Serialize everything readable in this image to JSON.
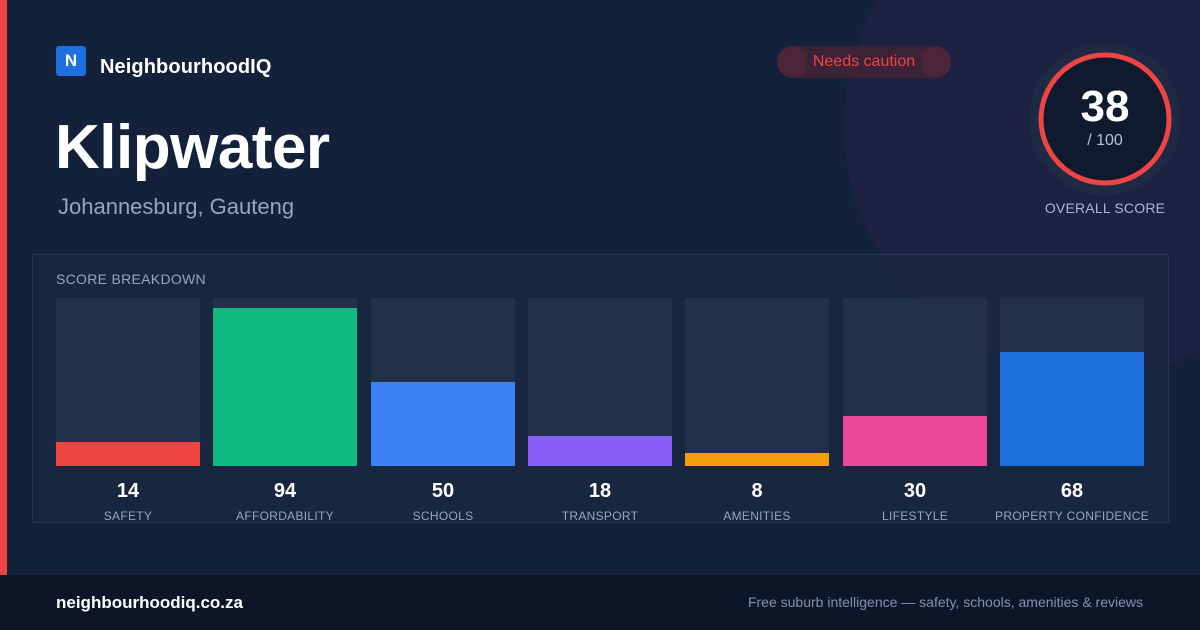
{
  "brand": {
    "logo_letter": "N",
    "name": "NeighbourhoodIQ",
    "color": "#1e6fe0"
  },
  "accent_color": "#ef4444",
  "status_badge": {
    "label": "Needs caution",
    "color": "#ef4444"
  },
  "suburb": {
    "name": "Klipwater",
    "location": "Johannesburg, Gauteng"
  },
  "overall_score": {
    "value": "38",
    "max_label": "/ 100",
    "caption": "OVERALL SCORE",
    "fraction": 0.38,
    "ring_color": "#ef4444"
  },
  "breakdown": {
    "title": "SCORE BREAKDOWN",
    "items": [
      {
        "value": 14,
        "label": "SAFETY",
        "color": "#ef4444"
      },
      {
        "value": 94,
        "label": "AFFORDABILITY",
        "color": "#10b981"
      },
      {
        "value": 50,
        "label": "SCHOOLS",
        "color": "#3b82f6"
      },
      {
        "value": 18,
        "label": "TRANSPORT",
        "color": "#8b5cf6"
      },
      {
        "value": 8,
        "label": "AMENITIES",
        "color": "#f59e0b"
      },
      {
        "value": 30,
        "label": "LIFESTYLE",
        "color": "#ec4899"
      },
      {
        "value": 68,
        "label": "PROPERTY CONFIDENCE",
        "color": "#1e6fdc"
      }
    ]
  },
  "footer": {
    "domain": "neighbourhoodiq.co.za",
    "tagline": "Free suburb intelligence — safety, schools, amenities & reviews"
  }
}
